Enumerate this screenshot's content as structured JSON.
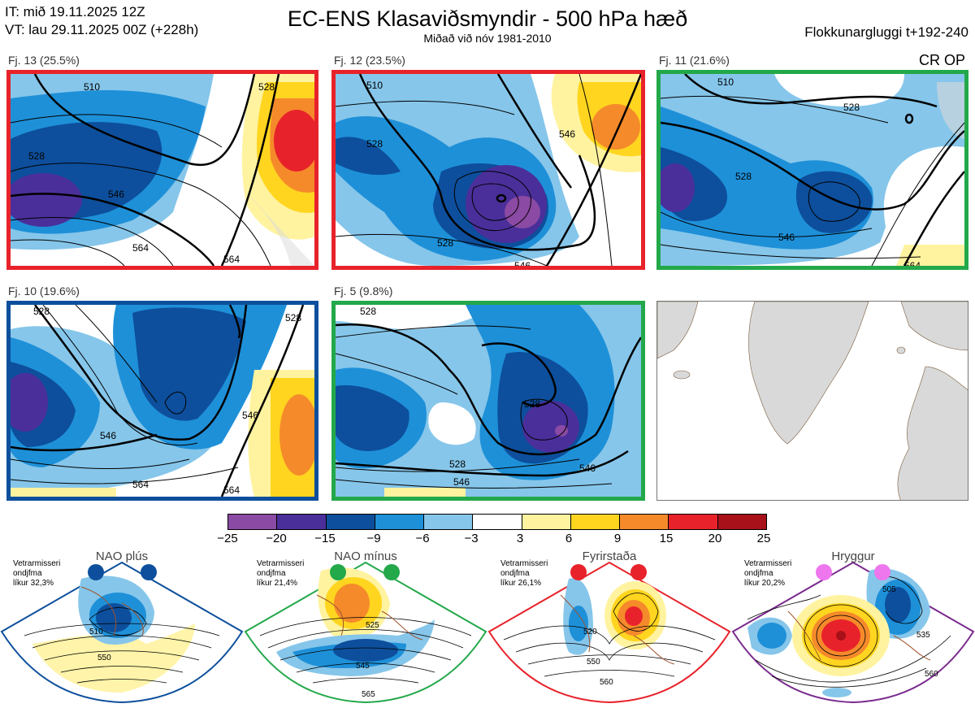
{
  "header": {
    "it_line": "IT: mið 19.11.2025 12Z",
    "vt_line": "VT: lau 29.11.2025 00Z  (+228h)",
    "title": "EC-ENS Klasaviðsmyndir - 500 hPa hæð",
    "subtitle": "Miðað við nóv 1981-2010",
    "window": "Flokkunargluggi t+192-240",
    "crop": "CR OP"
  },
  "panels": [
    {
      "label": "Fj. 13 (25.5%)",
      "border_color": "#e8222a",
      "contours": [
        "510",
        "528",
        "546",
        "564",
        "564",
        "528"
      ]
    },
    {
      "label": "Fj. 12 (23.5%)",
      "border_color": "#e8222a",
      "contours": [
        "510",
        "528",
        "528",
        "546",
        "546"
      ]
    },
    {
      "label": "Fj. 11 (21.6%)",
      "border_color": "#23a84a",
      "contours": [
        "510",
        "528",
        "528",
        "546",
        "564"
      ]
    },
    {
      "label": "Fj. 10 (19.6%)",
      "border_color": "#0d4f9c",
      "contours": [
        "528",
        "546",
        "564",
        "564",
        "546",
        "528"
      ]
    },
    {
      "label": "Fj. 5 (9.8%)",
      "border_color": "#23a84a",
      "contours": [
        "528",
        "528",
        "528",
        "546",
        "546"
      ]
    }
  ],
  "colorbar": {
    "colors": [
      "#8b4aa3",
      "#4a2f9a",
      "#0d4f9c",
      "#1e90d8",
      "#86c6ea",
      "#ffffff",
      "#fff3a0",
      "#ffd51f",
      "#f58a2b",
      "#e8222a",
      "#a8101a"
    ],
    "ticks": [
      "−25",
      "−20",
      "−15",
      "−9",
      "−6",
      "−3",
      "3",
      "6",
      "9",
      "15",
      "20",
      "25"
    ]
  },
  "regimes": [
    {
      "title": "NAO plús",
      "info": [
        "Vetrarmisseri",
        "ondjfma",
        "líkur 32,3%"
      ],
      "border_color": "#0d4f9c",
      "dot_color": "#0d4f9c",
      "contours": [
        "510",
        "550"
      ]
    },
    {
      "title": "NAO mínus",
      "info": [
        "Vetrarmisseri",
        "ondjfma",
        "líkur 21,4%"
      ],
      "border_color": "#23a84a",
      "dot_color": "#23a84a",
      "contours": [
        "525",
        "545",
        "565"
      ]
    },
    {
      "title": "Fyrirstaða",
      "info": [
        "Vetrarmisseri",
        "ondjfma",
        "líkur 26,1%"
      ],
      "border_color": "#e8222a",
      "dot_color": "#e8222a",
      "contours": [
        "520",
        "550",
        "560"
      ]
    },
    {
      "title": "Hryggur",
      "info": [
        "Vetrarmisseri",
        "ondjfma",
        "líkur 20,2%"
      ],
      "border_color": "#7a2a8e",
      "dot_color": "#ee77ee",
      "contours": [
        "505",
        "535",
        "560"
      ]
    }
  ]
}
